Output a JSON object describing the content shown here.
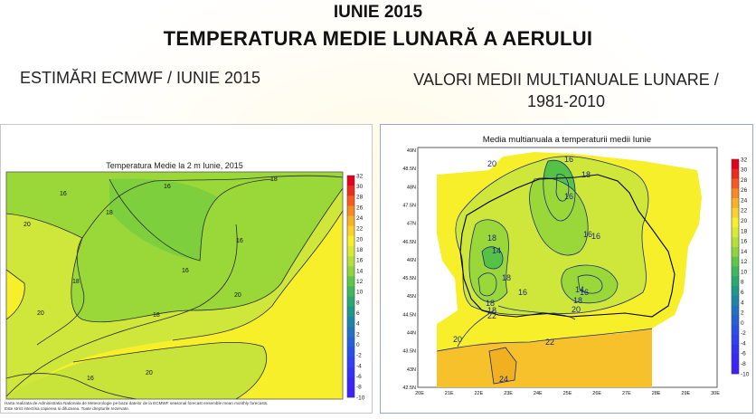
{
  "header": {
    "line1": "IUNIE 2015",
    "line2": "TEMPERATURA MEDIE LUNARĂ A AERULUI"
  },
  "left_panel": {
    "heading": "ESTIMĂRI ECMWF / IUNIE 2015",
    "map_title": "Temperatura Medie la 2 m Iunie, 2015",
    "colorbar_labels": [
      "32",
      "30",
      "28",
      "26",
      "24",
      "22",
      "20",
      "18",
      "16",
      "14",
      "12",
      "10",
      "8",
      "6",
      "4",
      "2",
      "0",
      "-2",
      "-4",
      "-6",
      "-8",
      "-10"
    ],
    "contour_labels": [
      "16",
      "16",
      "18",
      "20",
      "18",
      "16",
      "18",
      "20",
      "18",
      "20",
      "16",
      "16",
      "20"
    ],
    "footnote_1": "Harta realizata de Administratia Nationala de Meteorologie pe baza datelor de la ECMWF seasonal forecast ensemble mean monthly forecasts.",
    "footnote_2": "Este strict interzisa copierea si difuzarea. Toate drepturile rezervate."
  },
  "right_panel": {
    "heading_line1": "VALORI MEDII MULTIANUALE LUNARE /",
    "heading_line2": "1981-2010",
    "map_title": "Media multianuala a temperaturii medii Iunie",
    "lat_labels": [
      "49N",
      "48.5N",
      "48N",
      "47.5N",
      "47N",
      "46.5N",
      "46N",
      "45.5N",
      "45N",
      "44.5N",
      "44N",
      "43.5N",
      "43N",
      "42.5N"
    ],
    "lon_labels": [
      "20E",
      "21E",
      "22E",
      "23E",
      "24E",
      "25E",
      "26E",
      "27E",
      "28E",
      "29E",
      "30E"
    ],
    "colorbar_labels": [
      "32",
      "30",
      "28",
      "26",
      "24",
      "22",
      "20",
      "18",
      "16",
      "14",
      "12",
      "10",
      "8",
      "6",
      "4",
      "2",
      "0",
      "-2",
      "-4",
      "-6",
      "-8",
      "-10"
    ],
    "contour_labels": [
      "20",
      "16",
      "18",
      "16",
      "18",
      "14",
      "16",
      "16",
      "18",
      "16",
      "18",
      "14",
      "18",
      "18",
      "20",
      "16",
      "22",
      "20",
      "22",
      "24"
    ]
  },
  "colors": {
    "yellow": "#f6ef2a",
    "light_green": "#cfe73a",
    "green": "#9ad83a",
    "deep_green": "#55c247",
    "orange": "#f6c12a",
    "contour": "#1a2a7a"
  }
}
